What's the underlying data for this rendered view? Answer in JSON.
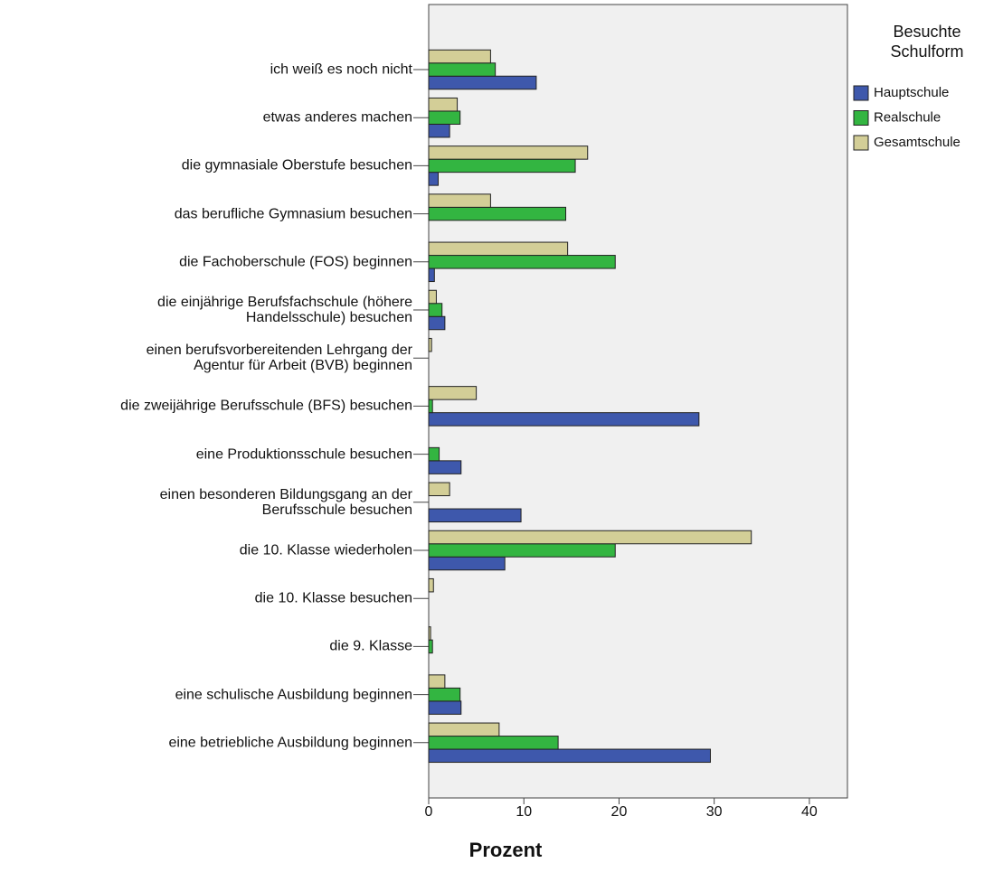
{
  "chart_data": {
    "type": "hbar",
    "categories": [
      "ich weiß es noch nicht",
      "etwas anderes machen",
      "die gymnasiale Oberstufe besuchen",
      "das berufliche Gymnasium besuchen",
      "die Fachoberschule (FOS) beginnen",
      "die einjährige Berufsfachschule (höhere\nHandelsschule) besuchen",
      "einen berufsvorbereitenden Lehrgang der\nAgentur für Arbeit (BVB) beginnen",
      "die zweijährige Berufsschule (BFS) besuchen",
      "eine Produktionsschule besuchen",
      "einen besonderen Bildungsgang an der\nBerufsschule besuchen",
      "die 10. Klasse wiederholen",
      "die 10. Klasse besuchen",
      "die 9. Klasse",
      "eine schulische Ausbildung beginnen",
      "eine betriebliche Ausbildung beginnen"
    ],
    "series": [
      {
        "name": "Hauptschule",
        "color": "#3e58ac",
        "values": [
          11.3,
          2.2,
          1.0,
          0,
          0.6,
          1.7,
          0,
          28.4,
          3.4,
          9.7,
          8.0,
          0,
          0,
          3.4,
          29.6
        ]
      },
      {
        "name": "Realschule",
        "color": "#33b541",
        "values": [
          7.0,
          3.3,
          15.4,
          14.4,
          19.6,
          1.4,
          0,
          0.4,
          1.1,
          0,
          19.6,
          0,
          0.4,
          3.3,
          13.6
        ]
      },
      {
        "name": "Gesamtschule",
        "color": "#d3ce97",
        "values": [
          6.5,
          3.0,
          16.7,
          6.5,
          14.6,
          0.8,
          0.3,
          5.0,
          0,
          2.2,
          33.9,
          0.5,
          0.2,
          1.7,
          7.4
        ]
      }
    ],
    "legend_title": "Besuchte\nSchulform",
    "x_label": "Prozent",
    "xlim": [
      0,
      44
    ],
    "xticks": [
      0,
      10,
      20,
      30,
      40
    ]
  }
}
